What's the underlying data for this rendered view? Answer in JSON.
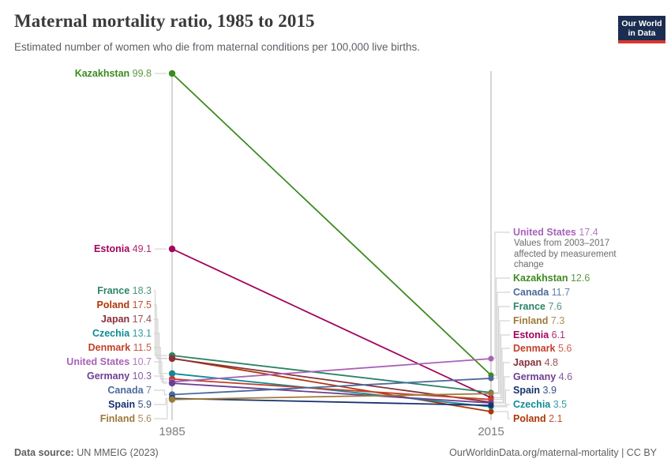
{
  "header": {
    "title": "Maternal mortality ratio, 1985 to 2015",
    "subtitle": "Estimated number of women who die from maternal conditions per 100,000 live births.",
    "logo": {
      "line1": "Our World",
      "line2": "in Data",
      "bg": "#1b2d50",
      "bar": "#d8392e"
    }
  },
  "chart_data": {
    "type": "line",
    "variant": "slope",
    "categories": [
      "1985",
      "2015"
    ],
    "ylim": [
      0,
      100
    ],
    "grid": false,
    "legend_position": "labeled-endpoints",
    "annotation": "Values from 2003–2017 affected by measurement change",
    "annotation_target": "United States",
    "series": [
      {
        "name": "Kazakhstan",
        "color": "#3c8a20",
        "values": [
          99.8,
          12.6
        ],
        "labels": [
          "99.8",
          "12.6"
        ]
      },
      {
        "name": "Estonia",
        "color": "#a2045e",
        "values": [
          49.1,
          6.1
        ],
        "labels": [
          "49.1",
          "6.1"
        ]
      },
      {
        "name": "France",
        "color": "#2c8465",
        "values": [
          18.3,
          7.6
        ],
        "labels": [
          "18.3",
          "7.6"
        ]
      },
      {
        "name": "Poland",
        "color": "#b13507",
        "values": [
          17.5,
          2.1
        ],
        "labels": [
          "17.5",
          "2.1"
        ]
      },
      {
        "name": "Japan",
        "color": "#883039",
        "values": [
          17.4,
          4.8
        ],
        "labels": [
          "17.4",
          "4.8"
        ]
      },
      {
        "name": "Czechia",
        "color": "#0f8a96",
        "values": [
          13.1,
          3.5
        ],
        "labels": [
          "13.1",
          "3.5"
        ]
      },
      {
        "name": "Denmark",
        "color": "#c4402a",
        "values": [
          11.5,
          5.6
        ],
        "labels": [
          "11.5",
          "5.6"
        ]
      },
      {
        "name": "United States",
        "color": "#a762b8",
        "values": [
          10.7,
          17.4
        ],
        "labels": [
          "10.7",
          "17.4"
        ]
      },
      {
        "name": "Germany",
        "color": "#6d3e91",
        "values": [
          10.3,
          4.6
        ],
        "labels": [
          "10.3",
          "4.6"
        ]
      },
      {
        "name": "Canada",
        "color": "#4c6a9c",
        "values": [
          7,
          11.7
        ],
        "labels": [
          "7",
          "11.7"
        ]
      },
      {
        "name": "Spain",
        "color": "#16316f",
        "values": [
          5.9,
          3.9
        ],
        "labels": [
          "5.9",
          "3.9"
        ]
      },
      {
        "name": "Finland",
        "color": "#9e7a39",
        "values": [
          5.6,
          7.3
        ],
        "labels": [
          "5.6",
          "7.3"
        ]
      }
    ]
  },
  "footer": {
    "source_label": "Data source:",
    "source_value": " UN MMEIG (2023)",
    "right": "OurWorldinData.org/maternal-mortality | CC BY"
  }
}
